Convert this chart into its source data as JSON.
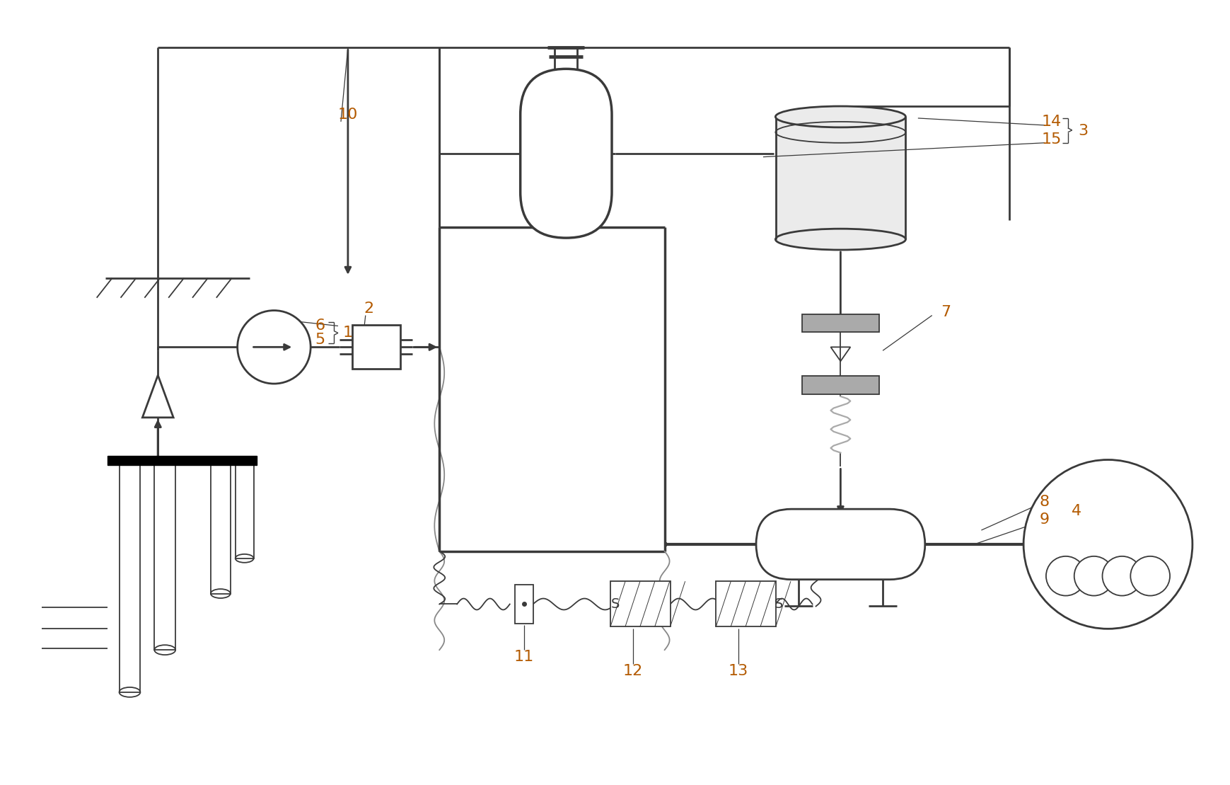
{
  "bg_color": "#ffffff",
  "line_color": "#3a3a3a",
  "label_color": "#b35a00",
  "fig_width": 17.4,
  "fig_height": 11.09
}
